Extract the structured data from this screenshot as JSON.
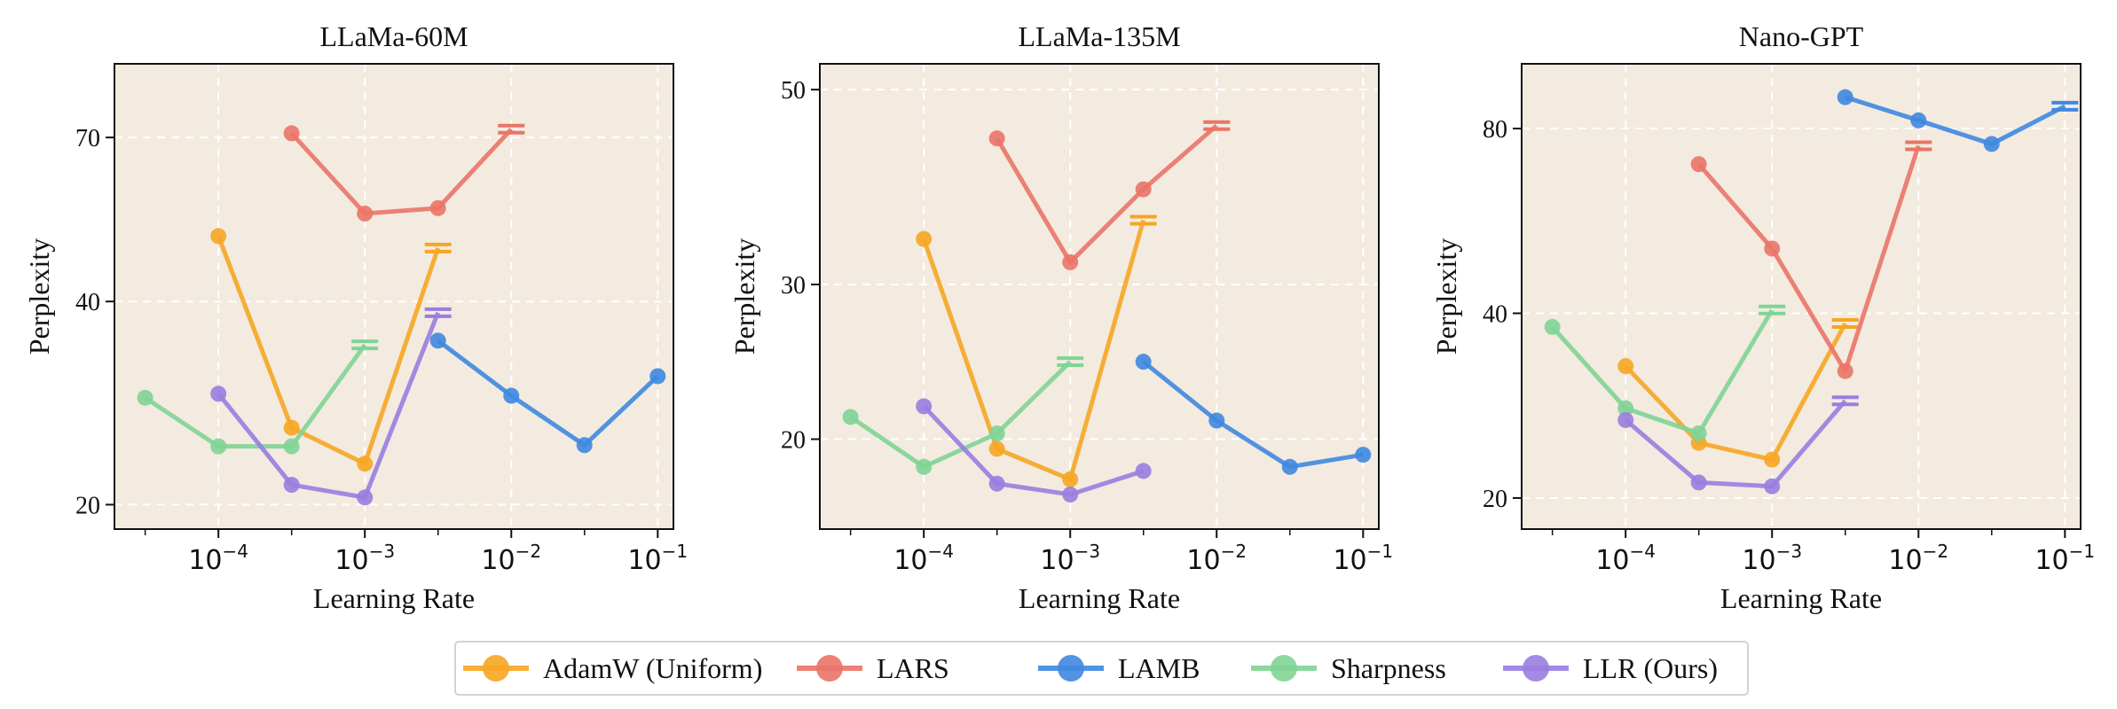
{
  "chart_data": [
    {
      "type": "line",
      "title": "LLaMa-60M",
      "xlabel": "Learning Rate",
      "ylabel": "Perplexity",
      "xscale": "log",
      "yscale": "log",
      "xlim": [
        1.95e-05,
        0.128
      ],
      "ylim": [
        18.4,
        90
      ],
      "yticks": [
        20,
        40,
        70
      ],
      "xticks": [
        {
          "value": 0.0001,
          "label": "10",
          "exp": "−4"
        },
        {
          "value": 0.001,
          "label": "10",
          "exp": "−3"
        },
        {
          "value": 0.01,
          "label": "10",
          "exp": "−2"
        },
        {
          "value": 0.1,
          "label": "10",
          "exp": "−1"
        }
      ],
      "grid": true,
      "series": [
        {
          "name": "AdamW (Uniform)",
          "x": [
            0.0001,
            0.000316,
            0.001,
            0.00316
          ],
          "y": [
            50,
            26,
            23,
            48
          ],
          "diverged": true
        },
        {
          "name": "LARS",
          "x": [
            0.000316,
            0.001,
            0.00316,
            0.01
          ],
          "y": [
            71,
            54,
            55,
            72
          ],
          "diverged": true
        },
        {
          "name": "LAMB",
          "x": [
            0.00316,
            0.01,
            0.0316,
            0.1
          ],
          "y": [
            35,
            29,
            24.5,
            31
          ],
          "diverged": false
        },
        {
          "name": "Sharpness",
          "x": [
            3.16e-05,
            0.0001,
            0.000316,
            0.001
          ],
          "y": [
            28.8,
            24.4,
            24.4,
            34.5
          ],
          "diverged": true
        },
        {
          "name": "LLR (Ours)",
          "x": [
            0.0001,
            0.000316,
            0.001,
            0.00316
          ],
          "y": [
            29.2,
            21.4,
            20.5,
            38.5
          ],
          "diverged": true
        }
      ]
    },
    {
      "type": "line",
      "title": "LLaMa-135M",
      "xlabel": "Learning Rate",
      "ylabel": "Perplexity",
      "xscale": "log",
      "yscale": "log",
      "xlim": [
        1.95e-05,
        0.128
      ],
      "ylim": [
        15.8,
        53.5
      ],
      "yticks": [
        20,
        30,
        50
      ],
      "xticks": [
        {
          "value": 0.0001,
          "label": "10",
          "exp": "−4"
        },
        {
          "value": 0.001,
          "label": "10",
          "exp": "−3"
        },
        {
          "value": 0.01,
          "label": "10",
          "exp": "−2"
        },
        {
          "value": 0.1,
          "label": "10",
          "exp": "−1"
        }
      ],
      "grid": true,
      "series": [
        {
          "name": "AdamW (Uniform)",
          "x": [
            0.0001,
            0.000316,
            0.001,
            0.00316
          ],
          "y": [
            33.8,
            19.5,
            18,
            35.5
          ],
          "diverged": true
        },
        {
          "name": "LARS",
          "x": [
            0.000316,
            0.001,
            0.00316,
            0.01
          ],
          "y": [
            44,
            31.8,
            38.5,
            45.5
          ],
          "diverged": true
        },
        {
          "name": "LAMB",
          "x": [
            0.00316,
            0.01,
            0.0316,
            0.1
          ],
          "y": [
            24.5,
            21,
            18.6,
            19.2
          ],
          "diverged": false
        },
        {
          "name": "Sharpness",
          "x": [
            3.16e-05,
            0.0001,
            0.000316,
            0.001
          ],
          "y": [
            21.2,
            18.6,
            20.3,
            24.5
          ],
          "diverged": true
        },
        {
          "name": "LLR (Ours)",
          "x": [
            0.0001,
            0.000316,
            0.001,
            0.00316
          ],
          "y": [
            21.8,
            17.8,
            17.3,
            18.4
          ],
          "diverged": false
        }
      ]
    },
    {
      "type": "line",
      "title": "Nano-GPT",
      "xlabel": "Learning Rate",
      "ylabel": "Perplexity",
      "xscale": "log",
      "yscale": "log",
      "xlim": [
        1.95e-05,
        0.128
      ],
      "ylim": [
        17.8,
        102
      ],
      "yticks": [
        20,
        40,
        80
      ],
      "xticks": [
        {
          "value": 0.0001,
          "label": "10",
          "exp": "−4"
        },
        {
          "value": 0.001,
          "label": "10",
          "exp": "−3"
        },
        {
          "value": 0.01,
          "label": "10",
          "exp": "−2"
        },
        {
          "value": 0.1,
          "label": "10",
          "exp": "−1"
        }
      ],
      "grid": true,
      "series": [
        {
          "name": "AdamW (Uniform)",
          "x": [
            0.0001,
            0.000316,
            0.001,
            0.00316
          ],
          "y": [
            32.8,
            24.6,
            23.1,
            38.5
          ],
          "diverged": true
        },
        {
          "name": "LARS",
          "x": [
            0.000316,
            0.001,
            0.00316,
            0.01
          ],
          "y": [
            70,
            51,
            32.2,
            75
          ],
          "diverged": true
        },
        {
          "name": "LAMB",
          "x": [
            0.00316,
            0.01,
            0.0316,
            0.1
          ],
          "y": [
            90,
            82.5,
            75.5,
            87
          ],
          "diverged": true
        },
        {
          "name": "Sharpness",
          "x": [
            3.16e-05,
            0.0001,
            0.000316,
            0.001
          ],
          "y": [
            38,
            28,
            25.5,
            40.5
          ],
          "diverged": true
        },
        {
          "name": "LLR (Ours)",
          "x": [
            0.0001,
            0.000316,
            0.001,
            0.00316
          ],
          "y": [
            26.8,
            21.2,
            20.9,
            28.8
          ],
          "diverged": true
        }
      ]
    }
  ],
  "legend": {
    "placement": "bottom-center",
    "items": [
      {
        "name": "AdamW (Uniform)",
        "color": "#f6a623"
      },
      {
        "name": "LARS",
        "color": "#ea7468"
      },
      {
        "name": "LAMB",
        "color": "#3f88e0"
      },
      {
        "name": "Sharpness",
        "color": "#7fd495"
      },
      {
        "name": "LLR (Ours)",
        "color": "#9a7de0"
      }
    ]
  },
  "colors": {
    "AdamW (Uniform)": "#f6a623",
    "LARS": "#ea7468",
    "LAMB": "#3f88e0",
    "Sharpness": "#7fd495",
    "LLR (Ours)": "#9a7de0",
    "plot_background": "#f3ebe0",
    "grid": "#ffffff"
  }
}
